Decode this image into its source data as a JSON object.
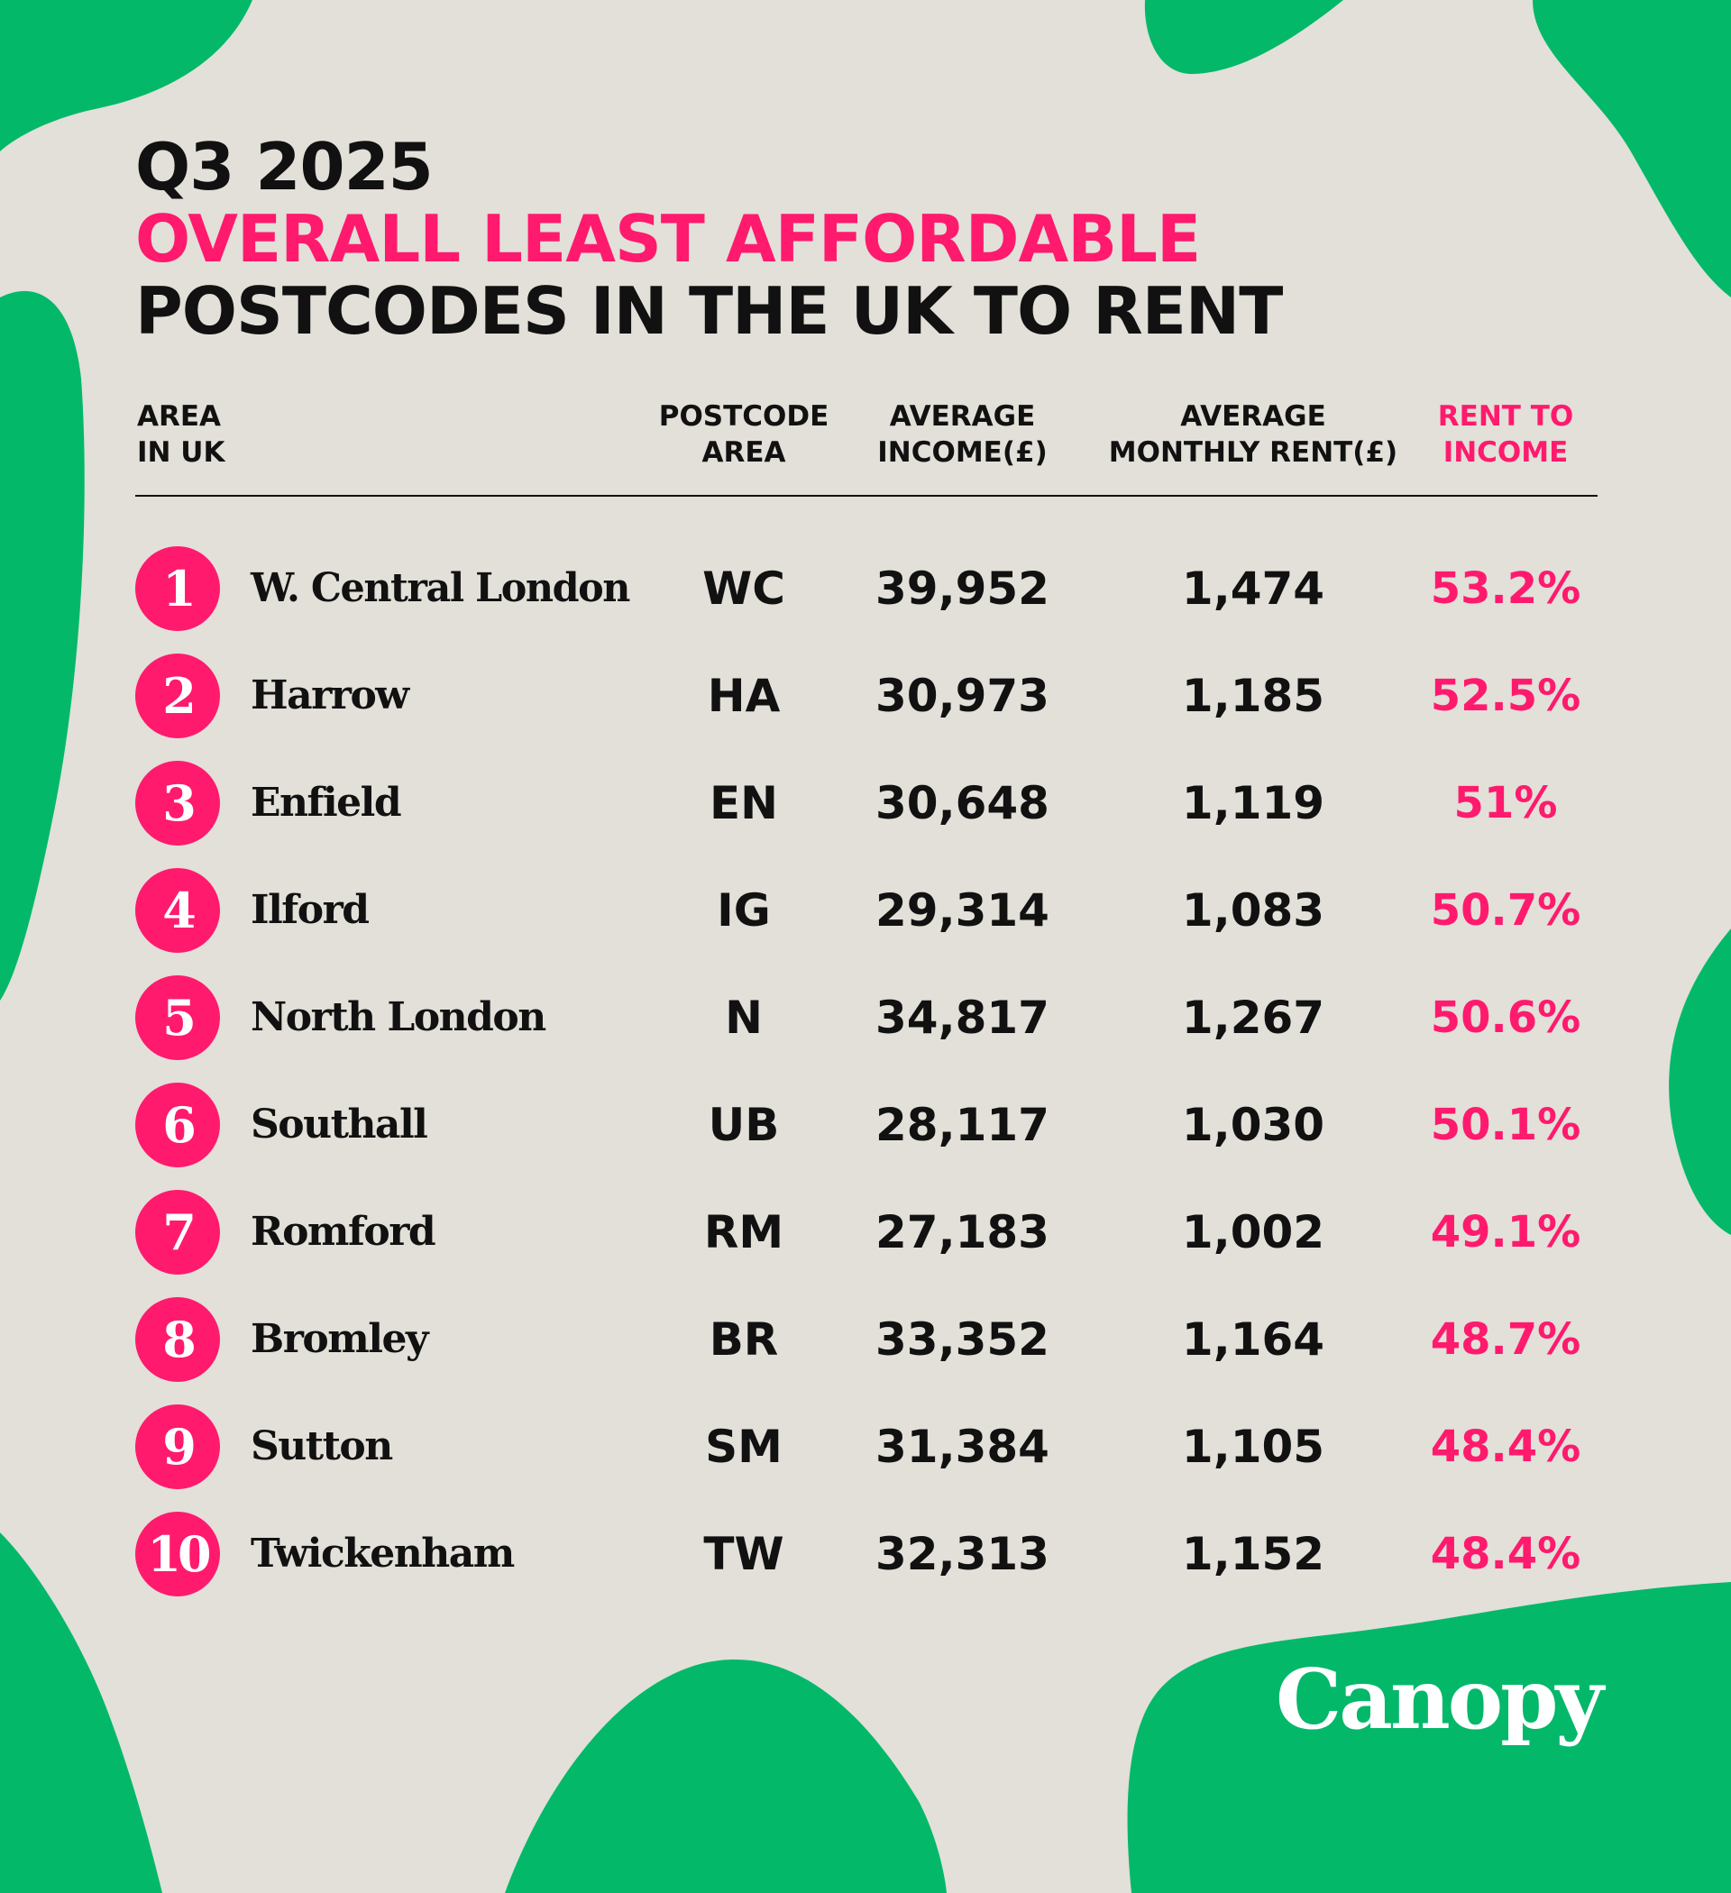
{
  "colors": {
    "background": "#e2e0d8",
    "green": "#04b86a",
    "pink": "#ff1a6e",
    "text": "#111111",
    "logo": "#ffffff"
  },
  "title": {
    "line1": "Q3 2025",
    "line2": "OVERALL LEAST AFFORDABLE",
    "line3": "POSTCODES IN THE UK TO RENT"
  },
  "columns": {
    "area": [
      "AREA",
      "IN UK"
    ],
    "postcode": [
      "POSTCODE",
      "AREA"
    ],
    "income": [
      "AVERAGE",
      "INCOME(£)"
    ],
    "rent": [
      "AVERAGE",
      "MONTHLY RENT(£)"
    ],
    "rent_to_income": [
      "RENT TO",
      "INCOME"
    ]
  },
  "chart_data": {
    "type": "table",
    "title": "Q3 2025 OVERALL LEAST AFFORDABLE POSTCODES IN THE UK TO RENT",
    "columns": [
      "AREA IN UK",
      "POSTCODE AREA",
      "AVERAGE INCOME(£)",
      "AVERAGE MONTHLY RENT(£)",
      "RENT TO INCOME"
    ],
    "rows": [
      {
        "rank": "1",
        "area": "W. Central London",
        "postcode": "WC",
        "income": "39,952",
        "rent": "1,474",
        "rent_to_income": "53.2%"
      },
      {
        "rank": "2",
        "area": "Harrow",
        "postcode": "HA",
        "income": "30,973",
        "rent": "1,185",
        "rent_to_income": "52.5%"
      },
      {
        "rank": "3",
        "area": "Enfield",
        "postcode": "EN",
        "income": "30,648",
        "rent": "1,119",
        "rent_to_income": "51%"
      },
      {
        "rank": "4",
        "area": "Ilford",
        "postcode": "IG",
        "income": "29,314",
        "rent": "1,083",
        "rent_to_income": "50.7%"
      },
      {
        "rank": "5",
        "area": "North London",
        "postcode": "N",
        "income": "34,817",
        "rent": "1,267",
        "rent_to_income": "50.6%"
      },
      {
        "rank": "6",
        "area": "Southall",
        "postcode": "UB",
        "income": "28,117",
        "rent": "1,030",
        "rent_to_income": "50.1%"
      },
      {
        "rank": "7",
        "area": "Romford",
        "postcode": "RM",
        "income": "27,183",
        "rent": "1,002",
        "rent_to_income": "49.1%"
      },
      {
        "rank": "8",
        "area": "Bromley",
        "postcode": "BR",
        "income": "33,352",
        "rent": "1,164",
        "rent_to_income": "48.7%"
      },
      {
        "rank": "9",
        "area": "Sutton",
        "postcode": "SM",
        "income": "31,384",
        "rent": "1,105",
        "rent_to_income": "48.4%"
      },
      {
        "rank": "10",
        "area": "Twickenham",
        "postcode": "TW",
        "income": "32,313",
        "rent": "1,152",
        "rent_to_income": "48.4%"
      }
    ]
  },
  "logo": {
    "text": "Canopy"
  }
}
